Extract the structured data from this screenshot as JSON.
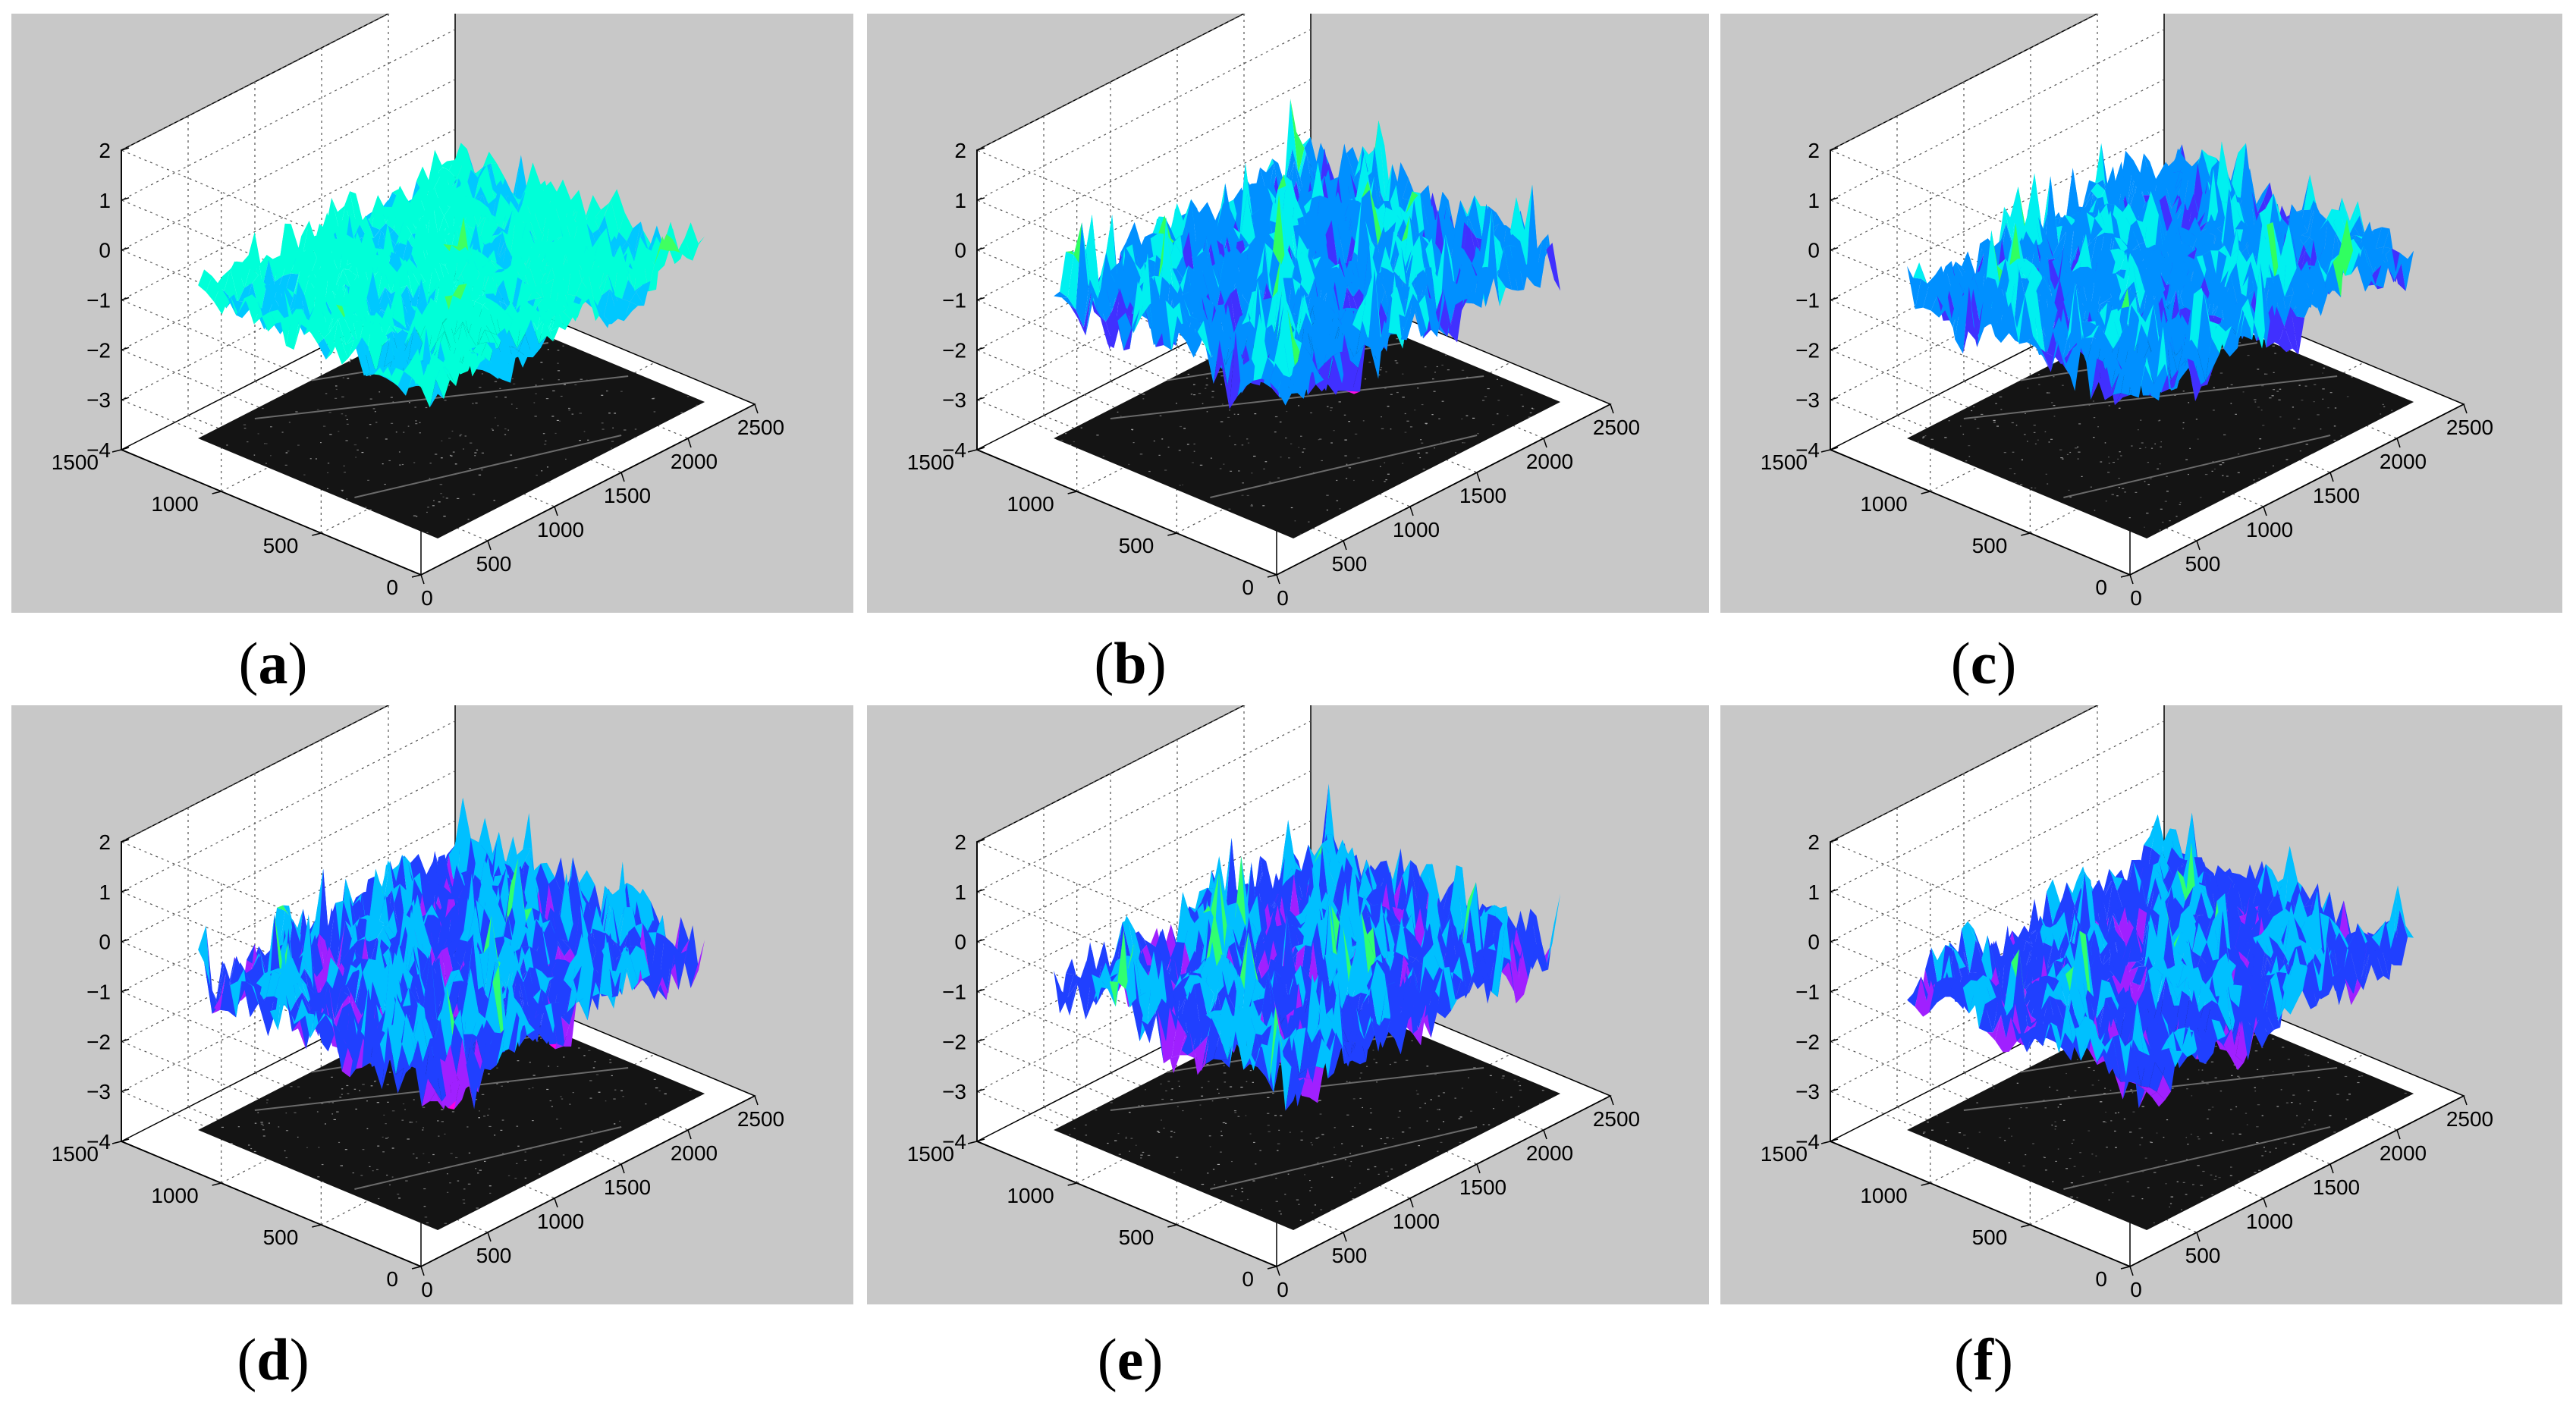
{
  "figure": {
    "panels": [
      {
        "id": "a",
        "caption": "a",
        "surface_variant": "low",
        "tone": "cyan-green"
      },
      {
        "id": "b",
        "caption": "b",
        "surface_variant": "high",
        "tone": "mixed"
      },
      {
        "id": "c",
        "caption": "c",
        "surface_variant": "mid",
        "tone": "mixed"
      },
      {
        "id": "d",
        "caption": "d",
        "surface_variant": "high",
        "tone": "blue-magenta"
      },
      {
        "id": "e",
        "caption": "e",
        "surface_variant": "high",
        "tone": "blue-magenta"
      },
      {
        "id": "f",
        "caption": "f",
        "surface_variant": "mid",
        "tone": "blue-magenta"
      }
    ],
    "caption_open": "(",
    "caption_close": ")"
  },
  "chart_data": [
    {
      "type": "surface3d",
      "panel": "a",
      "z_ticks": [
        "2",
        "1",
        "0",
        "−1",
        "−2",
        "−3",
        "−4"
      ],
      "y_ticks": [
        "1500",
        "1000",
        "500",
        "0"
      ],
      "x_ticks": [
        "0",
        "500",
        "1000",
        "1500",
        "2000",
        "2500"
      ],
      "zlim": [
        -4,
        2
      ],
      "ylim": [
        0,
        1500
      ],
      "xlim": [
        0,
        2500
      ],
      "colormap": [
        "#ff00ff",
        "#0000ff",
        "#00ffff",
        "#00ff00",
        "#ff0000"
      ],
      "base_image": "grayscale aerial image at z = -4"
    },
    {
      "type": "surface3d",
      "panel": "b",
      "z_ticks": [
        "2",
        "1",
        "0",
        "−1",
        "−2",
        "−3",
        "−4"
      ],
      "y_ticks": [
        "1500",
        "1000",
        "500",
        "0"
      ],
      "x_ticks": [
        "0",
        "500",
        "1000",
        "1500",
        "2000",
        "2500"
      ],
      "zlim": [
        -4,
        2
      ],
      "ylim": [
        0,
        1500
      ],
      "xlim": [
        0,
        2500
      ]
    },
    {
      "type": "surface3d",
      "panel": "c",
      "z_ticks": [
        "2",
        "1",
        "0",
        "−1",
        "−2",
        "−3",
        "−4"
      ],
      "y_ticks": [
        "1500",
        "1000",
        "500",
        "0"
      ],
      "x_ticks": [
        "0",
        "500",
        "1000",
        "1500",
        "2000",
        "2500"
      ],
      "zlim": [
        -4,
        2
      ],
      "ylim": [
        0,
        1500
      ],
      "xlim": [
        0,
        2500
      ]
    },
    {
      "type": "surface3d",
      "panel": "d",
      "z_ticks": [
        "2",
        "1",
        "0",
        "−1",
        "−2",
        "−3",
        "−4"
      ],
      "y_ticks": [
        "1500",
        "1000",
        "500",
        "0"
      ],
      "x_ticks": [
        "0",
        "500",
        "1000",
        "1500",
        "2000",
        "2500"
      ],
      "zlim": [
        -4,
        2
      ],
      "ylim": [
        0,
        1500
      ],
      "xlim": [
        0,
        2500
      ]
    },
    {
      "type": "surface3d",
      "panel": "e",
      "z_ticks": [
        "2",
        "1",
        "0",
        "−1",
        "−2",
        "−3",
        "−4"
      ],
      "y_ticks": [
        "1500",
        "1000",
        "500",
        "0"
      ],
      "x_ticks": [
        "0",
        "500",
        "1000",
        "1500",
        "2000",
        "2500"
      ],
      "zlim": [
        -4,
        2
      ],
      "ylim": [
        0,
        1500
      ],
      "xlim": [
        0,
        2500
      ]
    },
    {
      "type": "surface3d",
      "panel": "f",
      "z_ticks": [
        "2",
        "1",
        "0",
        "−1",
        "−2",
        "−3",
        "−4"
      ],
      "y_ticks": [
        "1500",
        "1000",
        "500",
        "0"
      ],
      "x_ticks": [
        "0",
        "500",
        "1000",
        "1500",
        "2000",
        "2500"
      ],
      "zlim": [
        -4,
        2
      ],
      "ylim": [
        0,
        1500
      ],
      "xlim": [
        0,
        2500
      ]
    }
  ]
}
